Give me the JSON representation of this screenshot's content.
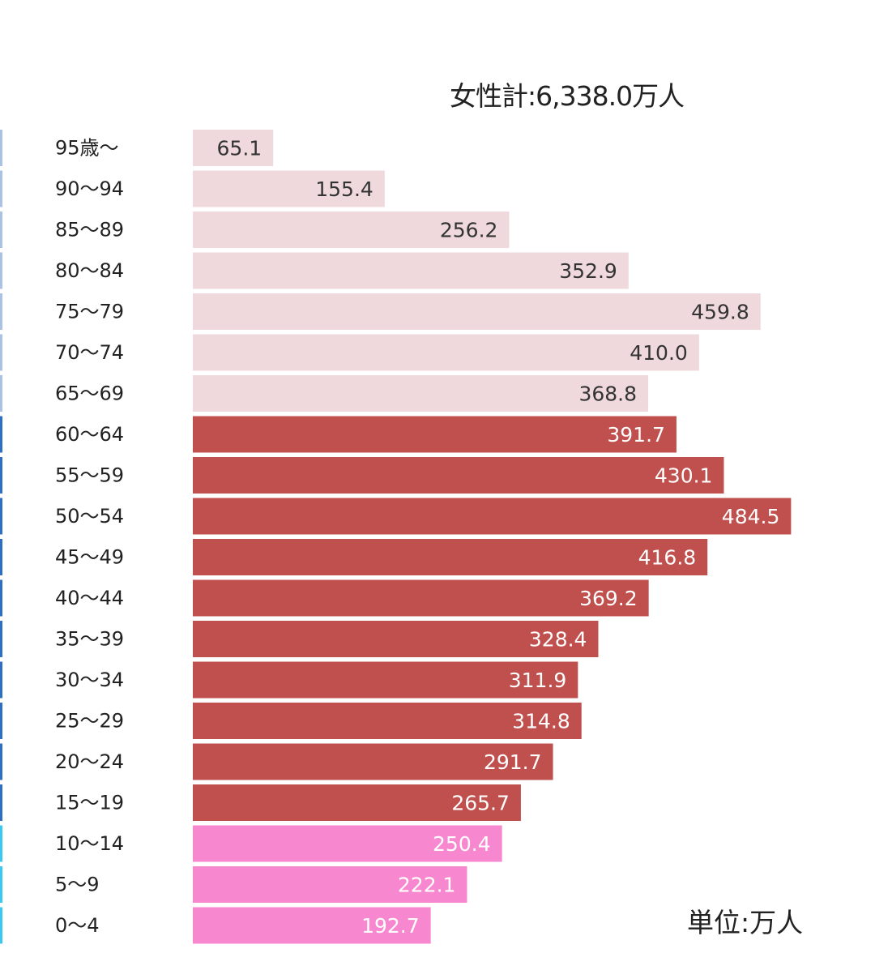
{
  "header": {
    "total_label": "女性計:6,338.0万人"
  },
  "footer": {
    "unit_label": "単位:万人"
  },
  "colors": {
    "elderly": "#efd9dc",
    "working": "#c0504d",
    "youth": "#f788d0",
    "label_dark": "#333333",
    "label_light": "#ffffff",
    "edge_light": "#a9c2e6",
    "edge_dark": "#2e6fc4",
    "edge_cyan": "#38c8f0"
  },
  "chart_data": {
    "type": "bar",
    "orientation": "horizontal",
    "categories": [
      "95歳～",
      "90～94",
      "85～89",
      "80～84",
      "75～79",
      "70～74",
      "65～69",
      "60～64",
      "55～59",
      "50～54",
      "45～49",
      "40～44",
      "35～39",
      "30～34",
      "25～29",
      "20～24",
      "15～19",
      "10～14",
      "5～9",
      "0～4"
    ],
    "values": [
      65.1,
      155.4,
      256.2,
      352.9,
      459.8,
      410.0,
      368.8,
      391.7,
      430.1,
      484.5,
      416.8,
      369.2,
      328.4,
      311.9,
      314.8,
      291.7,
      265.7,
      250.4,
      222.1,
      192.7
    ],
    "value_labels": [
      "65.1",
      "155.4",
      "256.2",
      "352.9",
      "459.8",
      "410.0",
      "368.8",
      "391.7",
      "430.1",
      "484.5",
      "416.8",
      "369.2",
      "328.4",
      "311.9",
      "314.8",
      "291.7",
      "265.7",
      "250.4",
      "222.1",
      "192.7"
    ],
    "groups": [
      "elderly",
      "elderly",
      "elderly",
      "elderly",
      "elderly",
      "elderly",
      "elderly",
      "working",
      "working",
      "working",
      "working",
      "working",
      "working",
      "working",
      "working",
      "working",
      "working",
      "youth",
      "youth",
      "youth"
    ],
    "xlim": [
      0,
      490
    ],
    "title": "女性計:6,338.0万人",
    "unit": "単位:万人",
    "grid": false,
    "legend": "none"
  }
}
